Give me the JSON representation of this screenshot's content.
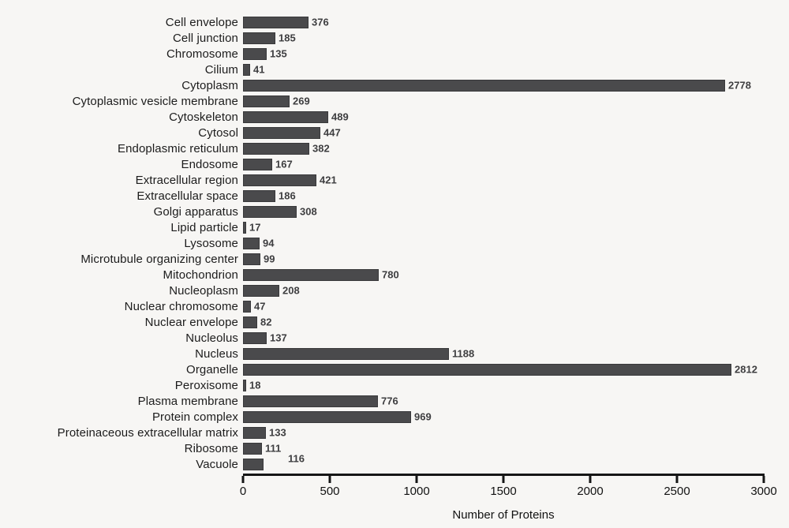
{
  "chart_data": {
    "type": "bar",
    "orientation": "horizontal",
    "title": "",
    "xlabel": "Number of Proteins",
    "ylabel": "",
    "xlim": [
      0,
      3000
    ],
    "xticks": [
      0,
      500,
      1000,
      1500,
      2000,
      2500,
      3000
    ],
    "grid": false,
    "legend": null,
    "bar_color": "#4a4a4c",
    "background_color": "#f7f6f4",
    "categories": [
      "Cell envelope",
      "Cell junction",
      "Chromosome",
      "Cilium",
      "Cytoplasm",
      "Cytoplasmic vesicle membrane",
      "Cytoskeleton",
      "Cytosol",
      "Endoplasmic reticulum",
      "Endosome",
      "Extracellular region",
      "Extracellular space",
      "Golgi apparatus",
      "Lipid particle",
      "Lysosome",
      "Microtubule organizing center",
      "Mitochondrion",
      "Nucleoplasm",
      "Nuclear chromosome",
      "Nuclear envelope",
      "Nucleolus",
      "Nucleus",
      "Organelle",
      "Peroxisome",
      "Plasma membrane",
      "Protein complex",
      "Proteinaceous extracellular matrix",
      "Ribosome",
      "Vacuole"
    ],
    "values": [
      376,
      185,
      135,
      41,
      2778,
      269,
      489,
      447,
      382,
      167,
      421,
      186,
      308,
      17,
      94,
      99,
      780,
      208,
      47,
      82,
      137,
      1188,
      2812,
      18,
      776,
      969,
      133,
      111,
      116
    ],
    "value_label_offsets": {
      "Vacuole": {
        "dx": 27,
        "dy": -7
      }
    }
  }
}
